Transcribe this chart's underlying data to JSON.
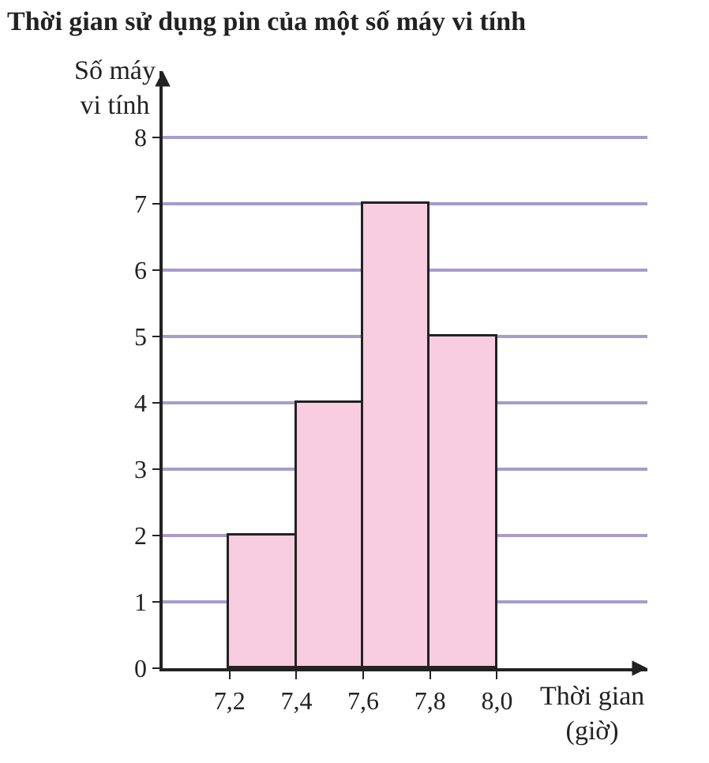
{
  "chart_data": {
    "type": "histogram",
    "title": "Thời gian sử dụng pin của một số máy vi tính",
    "xlabel": "Thời gian\n(giờ)",
    "ylabel": "Số máy\nvi tính",
    "bins": [
      7.2,
      7.4,
      7.6,
      7.8,
      8.0
    ],
    "values": [
      2,
      4,
      7,
      5
    ],
    "color": "#f8cde0",
    "xlim": [
      7.0,
      8.45
    ],
    "xticks": [
      {
        "value": 7.2,
        "label": "7,2"
      },
      {
        "value": 7.4,
        "label": "7,4"
      },
      {
        "value": 7.6,
        "label": "7,6"
      },
      {
        "value": 7.8,
        "label": "7,8"
      },
      {
        "value": 8.0,
        "label": "8,0"
      }
    ],
    "ylim": [
      0,
      9
    ],
    "yticks": [
      0,
      1,
      2,
      3,
      4,
      5,
      6,
      7,
      8
    ],
    "grid": "y"
  }
}
